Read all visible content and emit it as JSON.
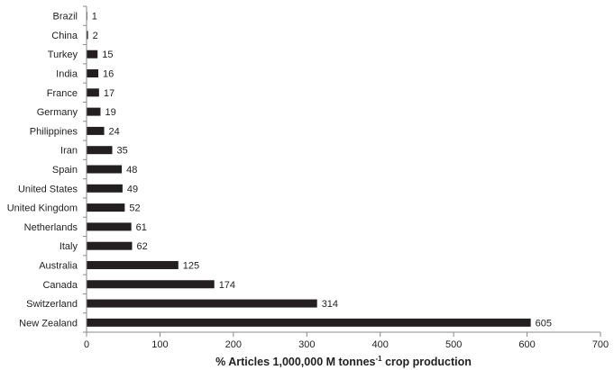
{
  "chart_data": {
    "type": "bar",
    "orientation": "horizontal",
    "categories": [
      "Brazil",
      "China",
      "Turkey",
      "India",
      "France",
      "Germany",
      "Philippines",
      "Iran",
      "Spain",
      "United States",
      "United Kingdom",
      "Netherlands",
      "Italy",
      "Australia",
      "Canada",
      "Switzerland",
      "New Zealand"
    ],
    "values": [
      1,
      2,
      15,
      16,
      17,
      19,
      24,
      35,
      48,
      49,
      52,
      61,
      62,
      125,
      174,
      314,
      605
    ],
    "data_labels": [
      "1",
      "2",
      "15",
      "16",
      "17",
      "19",
      "24",
      "35",
      "48",
      "49",
      "52",
      "61",
      "62",
      "125",
      "174",
      "314",
      "605"
    ],
    "xlabel": {
      "prefix": "% Articles 1,000,000 M tonnes",
      "superscript": "-1",
      "suffix": " crop production"
    },
    "xlim": [
      0,
      700
    ],
    "xticks": [
      0,
      100,
      200,
      300,
      400,
      500,
      600,
      700
    ],
    "xtick_labels": [
      "0",
      "100",
      "200",
      "300",
      "400",
      "500",
      "600",
      "700"
    ],
    "grid": false,
    "legend": "none",
    "bar_color": "#231f20"
  }
}
